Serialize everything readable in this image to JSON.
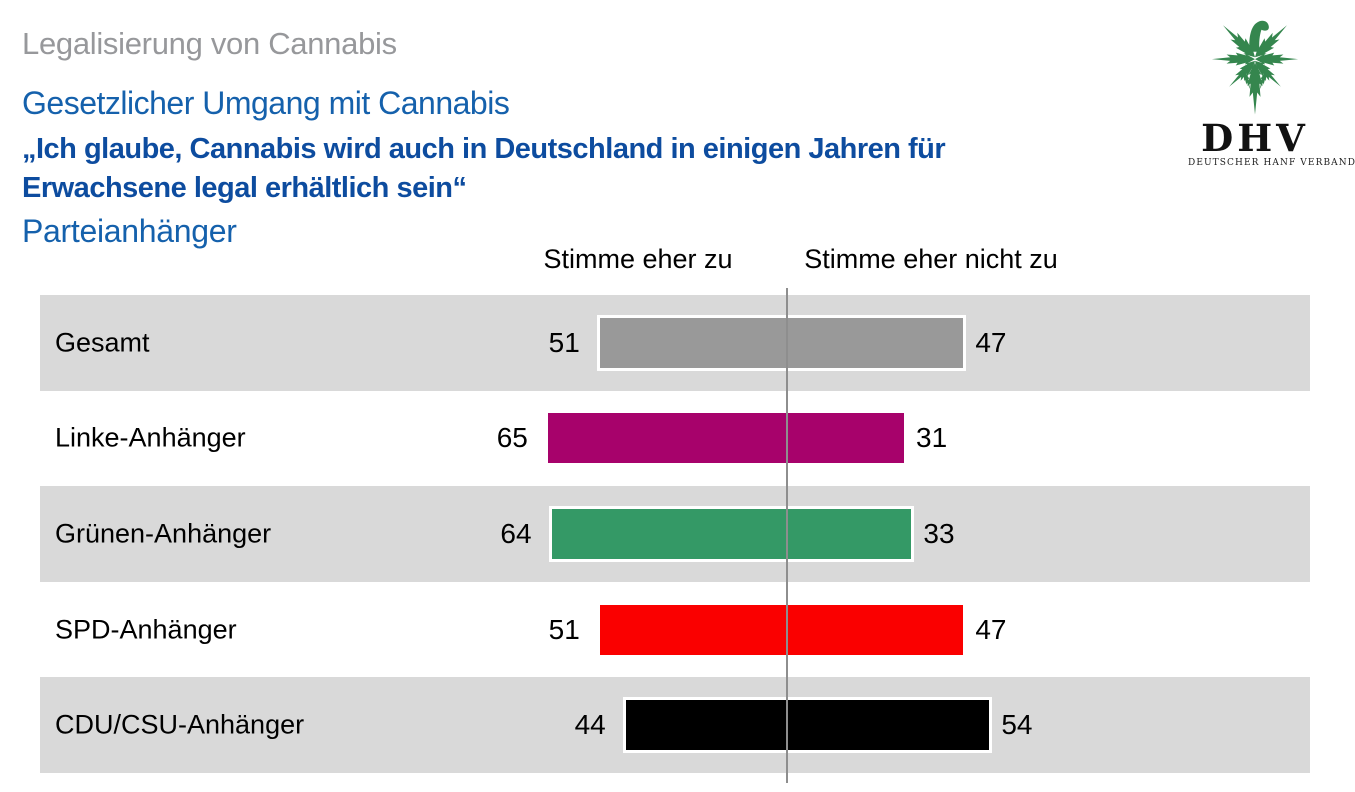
{
  "titles": {
    "kicker": "Legalisierung von Cannabis",
    "heading": "Gesetzlicher Umgang mit Cannabis",
    "quote_line1": "„Ich glaube, Cannabis wird auch in Deutschland in einigen Jahren für",
    "quote_line2": "Erwachsene legal erhältlich sein“",
    "subheading": "Parteianhänger"
  },
  "logo": {
    "acronym": "DHV",
    "name": "DEUTSCHER HANF VERBAND",
    "leaf_color": "#35864E"
  },
  "chart_data": {
    "type": "bar",
    "variant": "diverging-horizontal",
    "title": "Gesetzlicher Umgang mit Cannabis – Parteianhänger",
    "col_headers": [
      "Stimme eher zu",
      "Stimme eher nicht zu"
    ],
    "categories": [
      "Gesamt",
      "Linke-Anhänger",
      "Grünen-Anhänger",
      "SPD-Anhänger",
      "CDU/CSU-Anhänger"
    ],
    "series": [
      {
        "name": "Stimme eher zu",
        "values": [
          51,
          65,
          64,
          51,
          44
        ]
      },
      {
        "name": "Stimme eher nicht zu",
        "values": [
          47,
          31,
          33,
          47,
          54
        ]
      }
    ],
    "bar_colors": [
      "#999999",
      "#A7026B",
      "#349966",
      "#FA0000",
      "#000000"
    ],
    "unit": "percent",
    "row_alt_bg": "#D9D9D9",
    "divider_color": "#8E8E8E",
    "grid": false,
    "legend_position": "top"
  },
  "colors": {
    "kicker_gray": "#97989B",
    "heading_blue": "#1561AC",
    "quote_blue": "#0D4C9F"
  }
}
